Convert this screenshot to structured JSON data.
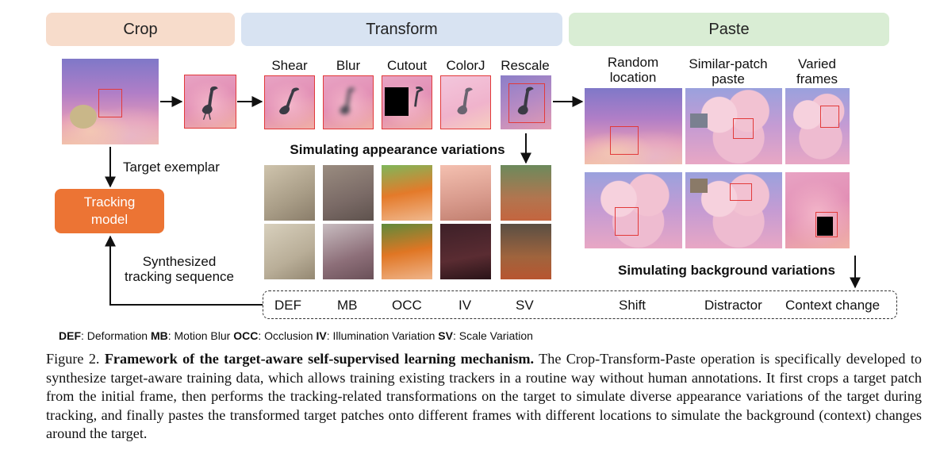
{
  "headers": {
    "crop": "Crop",
    "transform": "Transform",
    "paste": "Paste"
  },
  "transform_labels": [
    "Shear",
    "Blur",
    "Cutout",
    "ColorJ",
    "Rescale"
  ],
  "paste_labels": {
    "random_location": "Random\nlocation",
    "similar_patch": "Similar-patch\npaste",
    "varied_frames": "Varied\nframes"
  },
  "appearance_title": "Simulating appearance variations",
  "background_title": "Simulating background variations",
  "target_exemplar": "Target exemplar",
  "tracking_model": "Tracking\nmodel",
  "synthesized": "Synthesized\ntracking sequence",
  "sequence_labels": [
    "DEF",
    "MB",
    "OCC",
    "IV",
    "SV",
    "Shift",
    "Distractor",
    "Context change"
  ],
  "legend": [
    {
      "abbr": "DEF",
      "text": ": Deformation "
    },
    {
      "abbr": "MB",
      "text": ": Motion Blur "
    },
    {
      "abbr": "OCC",
      "text": ": Occlusion "
    },
    {
      "abbr": "IV",
      "text": ": Illumination Variation "
    },
    {
      "abbr": "SV",
      "text": ": Scale Variation"
    }
  ],
  "caption": {
    "prefix": "Figure 2. ",
    "bold": "Framework of the target-aware self-supervised learning mechanism.",
    "body": "  The Crop-Transform-Paste operation is specifically developed to synthesize target-aware training data, which allows training existing trackers in a routine way without human annotations. It first crops a target patch from the initial frame, then performs the tracking-related transformations on the target to simulate diverse appearance variations of the target during tracking, and finally pastes the transformed target patches onto different frames with different locations to simulate the background (context) changes around the target."
  },
  "colors": {
    "crop_header": "#f7dccb",
    "transform_header": "#d8e3f2",
    "paste_header": "#d9edd4",
    "tracking_model": "#ec7434",
    "box_red": "#e23a3a"
  }
}
